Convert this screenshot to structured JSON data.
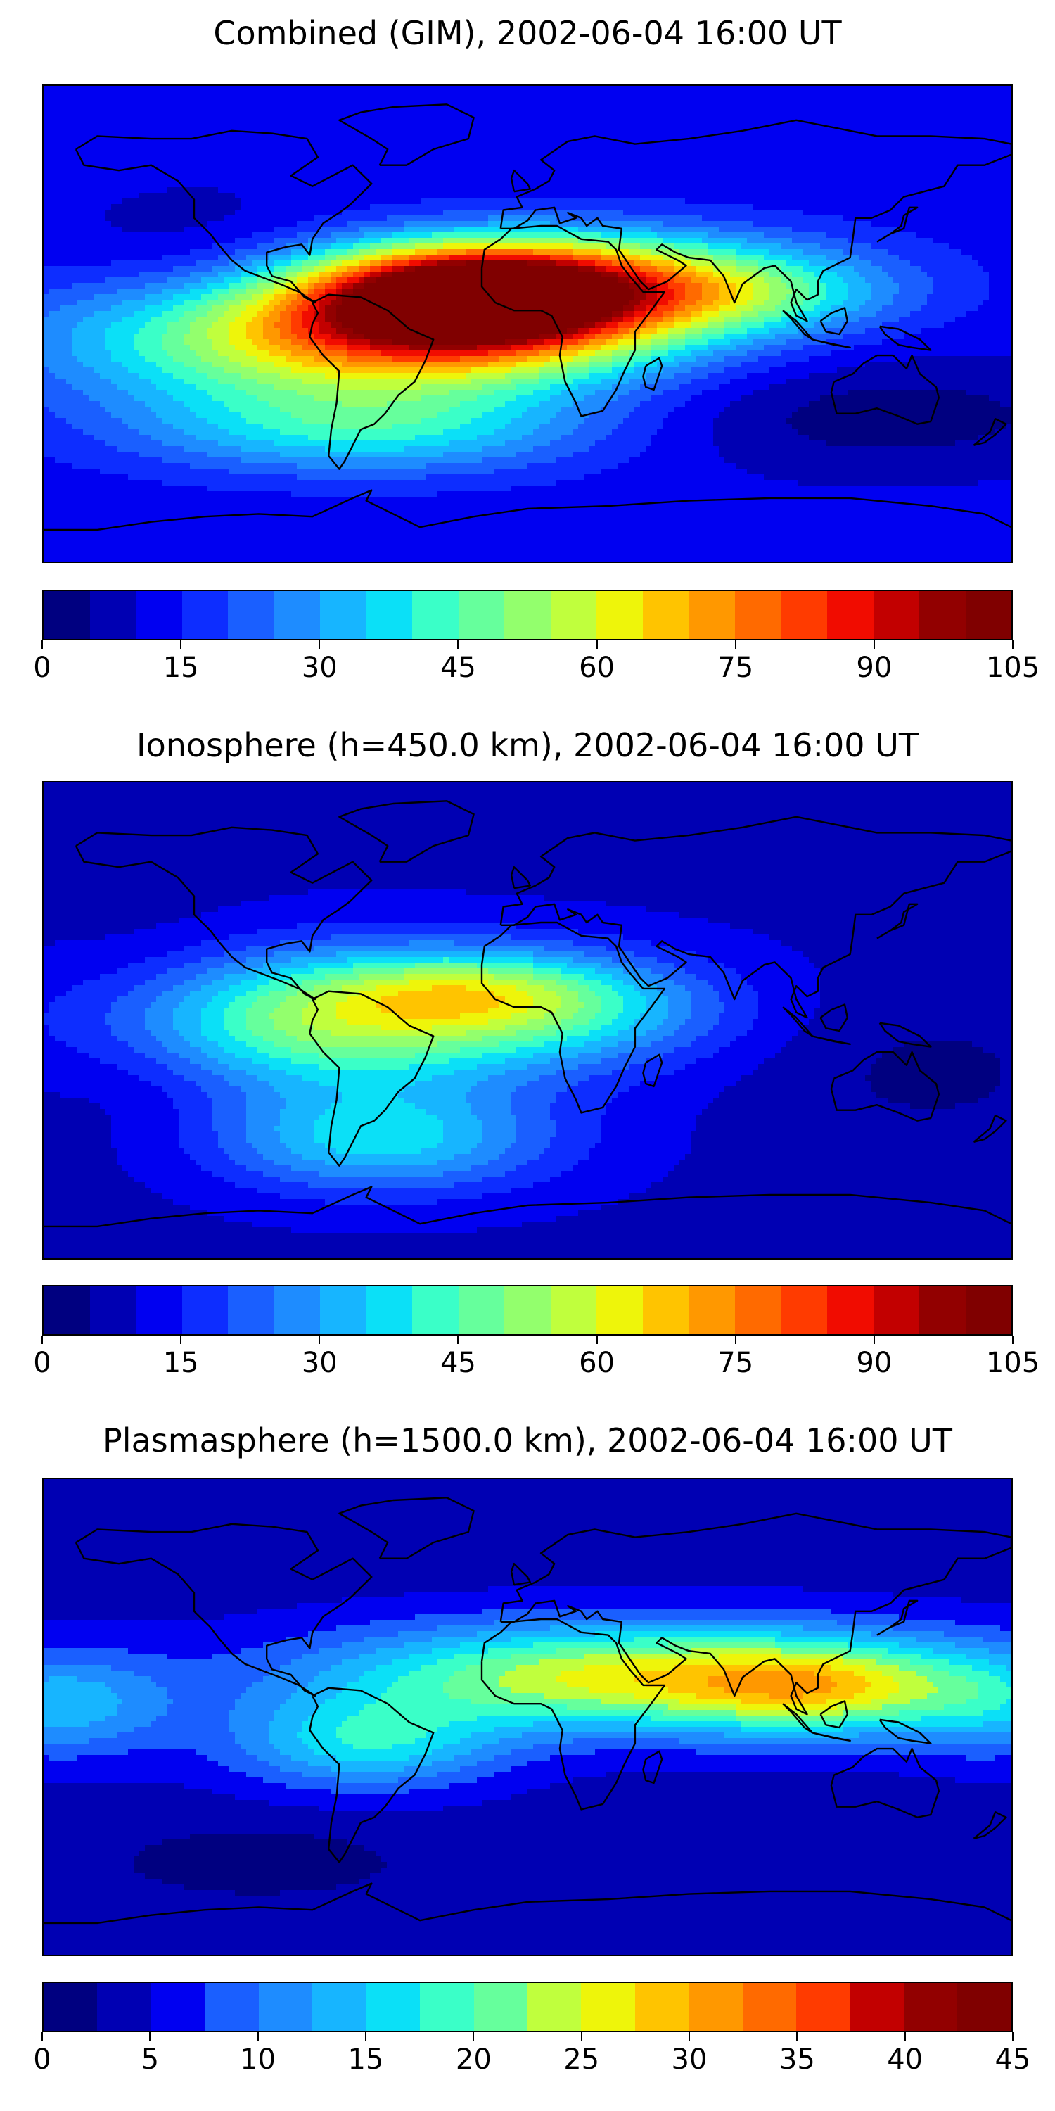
{
  "panels": [
    {
      "title": "Combined (GIM), 2002-06-04 16:00 UT",
      "colorbar": {
        "min": 0,
        "max": 105,
        "levels": 21,
        "tick_labels": [
          "0",
          "15",
          "30",
          "45",
          "60",
          "75",
          "90",
          "105"
        ]
      },
      "field": {
        "base": 12,
        "blobs": [
          {
            "lon": -75,
            "lat": -5,
            "amp": 48,
            "slon": 70,
            "slat": 18
          },
          {
            "lon": -20,
            "lat": 12,
            "amp": 62,
            "slon": 40,
            "slat": 12
          },
          {
            "lon": -10,
            "lat": 2,
            "amp": 45,
            "slon": 55,
            "slat": 15
          },
          {
            "lon": 30,
            "lat": 20,
            "amp": 30,
            "slon": 60,
            "slat": 12
          },
          {
            "lon": -60,
            "lat": -40,
            "amp": 25,
            "slon": 60,
            "slat": 12
          },
          {
            "lon": 80,
            "lat": 10,
            "amp": 20,
            "slon": 40,
            "slat": 10
          },
          {
            "lon": -120,
            "lat": 20,
            "amp": -8,
            "slon": 40,
            "slat": 20
          },
          {
            "lon": 130,
            "lat": -35,
            "amp": -10,
            "slon": 60,
            "slat": 15
          }
        ]
      }
    },
    {
      "title": "Ionosphere  (h=450.0 km), 2002-06-04 16:00 UT",
      "colorbar": {
        "min": 0,
        "max": 105,
        "levels": 21,
        "tick_labels": [
          "0",
          "15",
          "30",
          "45",
          "60",
          "75",
          "90",
          "105"
        ]
      },
      "field": {
        "base": 9,
        "blobs": [
          {
            "lon": -70,
            "lat": 0,
            "amp": 45,
            "slon": 60,
            "slat": 18
          },
          {
            "lon": -25,
            "lat": 12,
            "amp": 20,
            "slon": 35,
            "slat": 10
          },
          {
            "lon": -55,
            "lat": -45,
            "amp": 28,
            "slon": 45,
            "slat": 14
          },
          {
            "lon": 20,
            "lat": 5,
            "amp": 20,
            "slon": 40,
            "slat": 14
          },
          {
            "lon": -140,
            "lat": -5,
            "amp": -6,
            "slon": 30,
            "slat": 30
          },
          {
            "lon": 150,
            "lat": -20,
            "amp": -5,
            "slon": 40,
            "slat": 20
          }
        ]
      }
    },
    {
      "title": "Plasmasphere (h=1500.0 km), 2002-06-04 16:00 UT",
      "colorbar": {
        "min": 0,
        "max": 45,
        "levels": 18,
        "tick_labels": [
          "0",
          "5",
          "10",
          "15",
          "20",
          "25",
          "30",
          "35",
          "40",
          "45"
        ]
      },
      "field": {
        "base": 4,
        "blobs": [
          {
            "lon": 40,
            "lat": 15,
            "amp": 22,
            "slon": 80,
            "slat": 14
          },
          {
            "lon": 110,
            "lat": 10,
            "amp": 12,
            "slon": 35,
            "slat": 12
          },
          {
            "lon": -60,
            "lat": -10,
            "amp": 12,
            "slon": 35,
            "slat": 12
          },
          {
            "lon": -175,
            "lat": 5,
            "amp": 10,
            "slon": 30,
            "slat": 14
          },
          {
            "lon": 175,
            "lat": 5,
            "amp": 8,
            "slon": 25,
            "slat": 14
          },
          {
            "lon": -100,
            "lat": -55,
            "amp": -3,
            "slon": 40,
            "slat": 10
          }
        ]
      }
    }
  ],
  "colormap": [
    "#000080",
    "#0000b3",
    "#0000f1",
    "#0d2dff",
    "#1a5fff",
    "#1e8cff",
    "#17b5ff",
    "#0be0f7",
    "#3affc8",
    "#66ff9c",
    "#93ff6d",
    "#c0ff3d",
    "#eef50a",
    "#ffc400",
    "#ff9800",
    "#ff6a00",
    "#ff3b00",
    "#f10c00",
    "#c20000",
    "#920000",
    "#800000"
  ]
}
